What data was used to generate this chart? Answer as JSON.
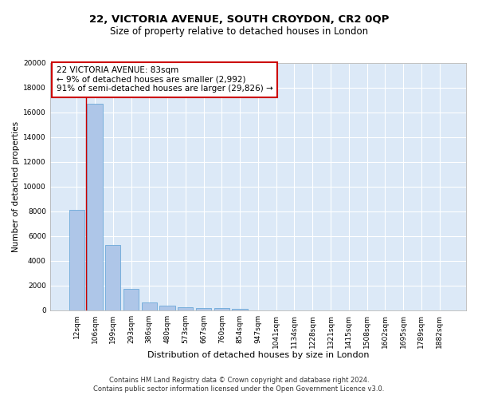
{
  "title1": "22, VICTORIA AVENUE, SOUTH CROYDON, CR2 0QP",
  "title2": "Size of property relative to detached houses in London",
  "xlabel": "Distribution of detached houses by size in London",
  "ylabel": "Number of detached properties",
  "categories": [
    "12sqm",
    "106sqm",
    "199sqm",
    "293sqm",
    "386sqm",
    "480sqm",
    "573sqm",
    "667sqm",
    "760sqm",
    "854sqm",
    "947sqm",
    "1041sqm",
    "1134sqm",
    "1228sqm",
    "1321sqm",
    "1415sqm",
    "1508sqm",
    "1602sqm",
    "1695sqm",
    "1789sqm",
    "1882sqm"
  ],
  "values": [
    8100,
    16700,
    5300,
    1750,
    650,
    350,
    250,
    200,
    175,
    150,
    0,
    0,
    0,
    0,
    0,
    0,
    0,
    0,
    0,
    0,
    0
  ],
  "bar_color": "#aec6e8",
  "bar_edge_color": "#5a9fd4",
  "annotation_line1": "22 VICTORIA AVENUE: 83sqm",
  "annotation_line2": "← 9% of detached houses are smaller (2,992)",
  "annotation_line3": "91% of semi-detached houses are larger (29,826) →",
  "annotation_box_color": "#ffffff",
  "annotation_box_edge_color": "#cc0000",
  "vline_x": 0.5,
  "ylim": [
    0,
    20000
  ],
  "yticks": [
    0,
    2000,
    4000,
    6000,
    8000,
    10000,
    12000,
    14000,
    16000,
    18000,
    20000
  ],
  "bg_color": "#dce9f7",
  "footer1": "Contains HM Land Registry data © Crown copyright and database right 2024.",
  "footer2": "Contains public sector information licensed under the Open Government Licence v3.0.",
  "title1_fontsize": 9.5,
  "title2_fontsize": 8.5,
  "xlabel_fontsize": 8,
  "ylabel_fontsize": 7.5,
  "tick_fontsize": 6.5,
  "annotation_fontsize": 7.5,
  "footer_fontsize": 6
}
